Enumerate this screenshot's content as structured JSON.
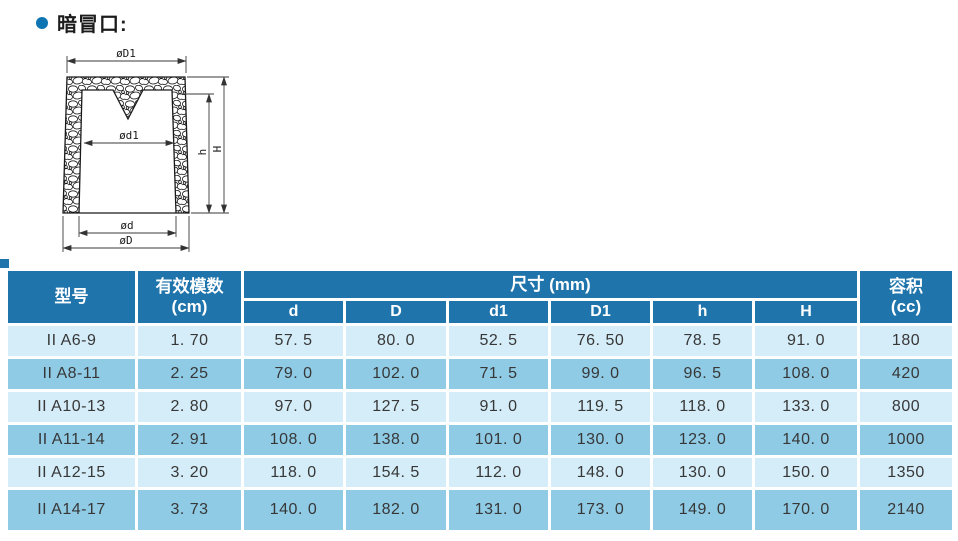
{
  "page": {
    "title": "暗冒口:"
  },
  "colors": {
    "header_blue": "#1e74ab",
    "row_light": "#d5edf8",
    "row_dark": "#8fcbe5",
    "bullet_blue": "#0f75b2",
    "line_black": "#1a1a1a"
  },
  "diagram": {
    "labels": {
      "top_outer_dia": "øD1",
      "inner_dia": "ød1",
      "bottom_inner_dia": "ød",
      "bottom_outer_dia": "øD",
      "inner_height": "h",
      "total_height": "H"
    }
  },
  "table": {
    "headers": {
      "model": "型号",
      "modulus_line1": "有效模数",
      "modulus_line2": "(cm)",
      "size_span": "尺寸 (mm)",
      "volume_line1": "容积",
      "volume_line2": "(cc)"
    },
    "dim_columns": [
      "d",
      "D",
      "d1",
      "D1",
      "h",
      "H"
    ],
    "rows": [
      {
        "model": "II A6-9",
        "modulus": "1. 70",
        "cells": [
          "57. 5",
          "80. 0",
          "52. 5",
          "76. 50",
          "78. 5",
          "91. 0"
        ],
        "volume": "180"
      },
      {
        "model": "II A8-11",
        "modulus": "2. 25",
        "cells": [
          "79. 0",
          "102. 0",
          "71. 5",
          "99. 0",
          "96. 5",
          "108. 0"
        ],
        "volume": "420"
      },
      {
        "model": "II A10-13",
        "modulus": "2. 80",
        "cells": [
          "97. 0",
          "127. 5",
          "91. 0",
          "119. 5",
          "118. 0",
          "133. 0"
        ],
        "volume": "800"
      },
      {
        "model": "II A11-14",
        "modulus": "2. 91",
        "cells": [
          "108. 0",
          "138. 0",
          "101. 0",
          "130. 0",
          "123. 0",
          "140. 0"
        ],
        "volume": "1000"
      },
      {
        "model": "II A12-15",
        "modulus": "3. 20",
        "cells": [
          "118. 0",
          "154. 5",
          "112. 0",
          "148. 0",
          "130. 0",
          "150. 0"
        ],
        "volume": "1350"
      },
      {
        "model": "II A14-17",
        "modulus": "3. 73",
        "cells": [
          "140. 0",
          "182. 0",
          "131. 0",
          "173. 0",
          "149. 0",
          "170. 0"
        ],
        "volume": "2140"
      }
    ]
  }
}
